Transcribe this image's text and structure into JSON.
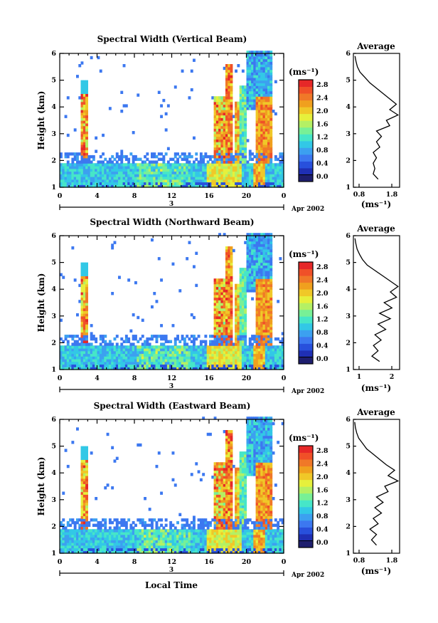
{
  "chart_data": [
    {
      "type": "heatmap",
      "panel": "vertical",
      "title": "Spectral Width (Vertical Beam)",
      "ylabel": "Height (km)",
      "xlabel": "",
      "date_label": "Apr 2002",
      "day_label": "3",
      "x_ticks": [
        "0",
        "4",
        "8",
        "12",
        "16",
        "20",
        "0"
      ],
      "y_ticks": [
        "1",
        "2",
        "3",
        "4",
        "5",
        "6"
      ],
      "xlim": [
        0,
        24
      ],
      "ylim": [
        1,
        6
      ],
      "colorbar": {
        "unit": "(ms⁻¹)",
        "min": 0.0,
        "max": 2.8,
        "labels": [
          "2.8",
          "2.4",
          "2.0",
          "1.6",
          "1.2",
          "0.8",
          "0.4",
          "0.0"
        ]
      },
      "profile": {
        "title": "Average",
        "xlabel": "(ms⁻¹)",
        "x_ticks": [
          "0.8",
          "1.8"
        ],
        "xlim": [
          0.5,
          1.9
        ],
        "y_ticks": [
          "1",
          "2",
          "3",
          "4",
          "5",
          "6"
        ],
        "height": [
          1.3,
          1.5,
          1.7,
          1.9,
          2.1,
          2.3,
          2.5,
          2.7,
          2.9,
          3.1,
          3.3,
          3.5,
          3.7,
          3.9,
          4.1,
          4.3,
          4.5,
          4.7,
          4.9,
          5.1,
          5.3,
          5.5,
          5.7,
          5.9
        ],
        "width": [
          1.25,
          1.1,
          1.15,
          1.1,
          1.2,
          1.1,
          1.3,
          1.2,
          1.35,
          1.2,
          1.6,
          1.5,
          1.85,
          1.6,
          1.8,
          1.6,
          1.4,
          1.2,
          1.0,
          0.85,
          0.7,
          0.62,
          0.58,
          0.55
        ]
      }
    },
    {
      "type": "heatmap",
      "panel": "north",
      "title": "Spectral Width (Northward Beam)",
      "ylabel": "Height (km)",
      "xlabel": "",
      "date_label": "Apr 2002",
      "day_label": "3",
      "x_ticks": [
        "0",
        "4",
        "8",
        "12",
        "16",
        "20",
        "0"
      ],
      "y_ticks": [
        "1",
        "2",
        "3",
        "4",
        "5",
        "6"
      ],
      "xlim": [
        0,
        24
      ],
      "ylim": [
        1,
        6
      ],
      "colorbar": {
        "unit": "(ms⁻¹)",
        "min": 0.0,
        "max": 2.8,
        "labels": [
          "2.8",
          "2.4",
          "2.0",
          "1.6",
          "1.2",
          "0.8",
          "0.4",
          "0.0"
        ]
      },
      "profile": {
        "title": "Average",
        "xlabel": "(ms⁻¹)",
        "x_ticks": [
          "1",
          "2"
        ],
        "xlim": [
          0.5,
          2.0
        ],
        "height": [
          1.3,
          1.5,
          1.7,
          1.9,
          2.1,
          2.3,
          2.5,
          2.7,
          2.9,
          3.1,
          3.3,
          3.5,
          3.7,
          3.9,
          4.1,
          4.3,
          4.5,
          4.7,
          4.9,
          5.1,
          5.3,
          5.5,
          5.7,
          5.9
        ],
        "width": [
          1.35,
          1.1,
          1.3,
          1.15,
          1.4,
          1.2,
          1.55,
          1.3,
          1.7,
          1.35,
          1.75,
          1.5,
          1.9,
          1.7,
          1.95,
          1.7,
          1.45,
          1.2,
          0.95,
          0.8,
          0.7,
          0.62,
          0.58,
          0.55
        ]
      }
    },
    {
      "type": "heatmap",
      "panel": "east",
      "title": "Spectral Width (Eastward Beam)",
      "ylabel": "Height (km)",
      "xlabel": "Local Time",
      "date_label": "Apr 2002",
      "day_label": "3",
      "x_ticks": [
        "0",
        "4",
        "8",
        "12",
        "16",
        "20",
        "0"
      ],
      "y_ticks": [
        "1",
        "2",
        "3",
        "4",
        "5",
        "6"
      ],
      "xlim": [
        0,
        24
      ],
      "ylim": [
        1,
        6
      ],
      "colorbar": {
        "unit": "(ms⁻¹)",
        "min": 0.0,
        "max": 2.8,
        "labels": [
          "2.8",
          "2.4",
          "2.0",
          "1.6",
          "1.2",
          "0.8",
          "0.4",
          "0.0"
        ]
      },
      "profile": {
        "title": "Average",
        "xlabel": "(ms⁻¹)",
        "x_ticks": [
          "0.8",
          "1.8"
        ],
        "xlim": [
          0.5,
          1.9
        ],
        "height": [
          1.3,
          1.5,
          1.7,
          1.9,
          2.1,
          2.3,
          2.5,
          2.7,
          2.9,
          3.1,
          3.3,
          3.5,
          3.7,
          3.9,
          4.1,
          4.3,
          4.5,
          4.7,
          4.9,
          5.1,
          5.3,
          5.5,
          5.7,
          5.9
        ],
        "width": [
          1.2,
          1.05,
          1.2,
          1.0,
          1.25,
          1.1,
          1.35,
          1.15,
          1.4,
          1.2,
          1.55,
          1.45,
          1.85,
          1.55,
          1.75,
          1.5,
          1.3,
          1.1,
          0.9,
          0.78,
          0.66,
          0.6,
          0.56,
          0.54
        ]
      }
    }
  ],
  "colors": [
    "#1e1e6e",
    "#1f2fb4",
    "#2850dc",
    "#3c78f0",
    "#3ca0f0",
    "#32c8e6",
    "#46e6c8",
    "#78f096",
    "#b4f064",
    "#e6f03c",
    "#f0c828",
    "#f0a01e",
    "#f07828",
    "#f05028",
    "#e62828"
  ]
}
